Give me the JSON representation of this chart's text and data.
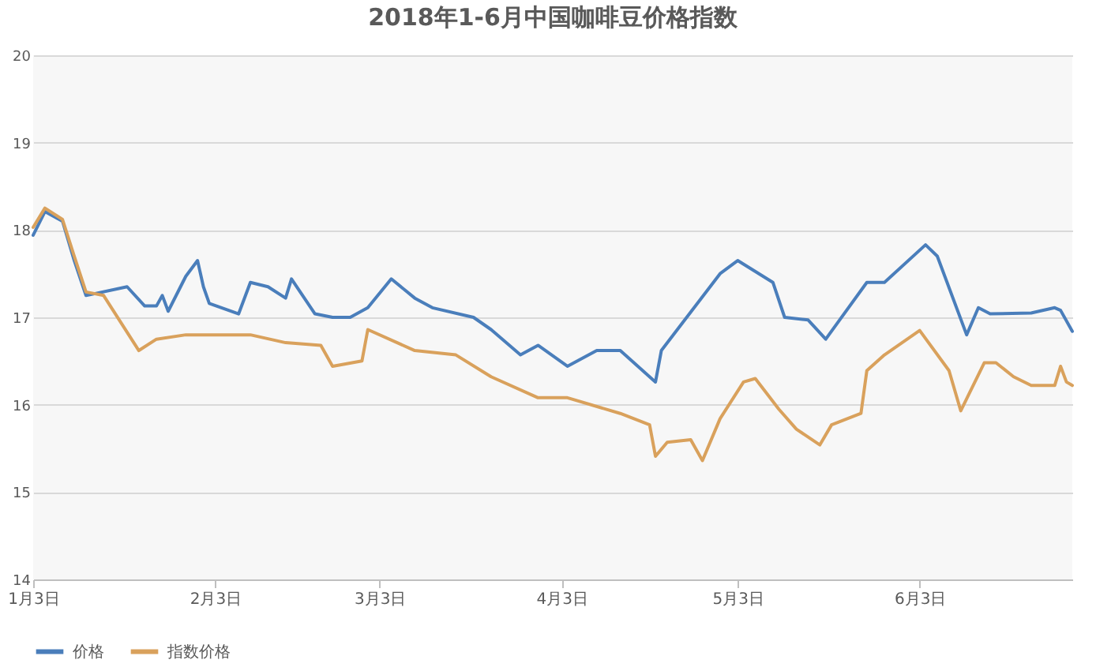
{
  "chart_data": {
    "type": "line",
    "title": "2018年1-6月中国咖啡豆价格指数",
    "x": [
      "--01-03",
      "--01-05",
      "--01-08",
      "--01-10",
      "--01-12",
      "--01-19",
      "--01-22",
      "--01-24",
      "--01-25",
      "--01-26",
      "--01-29",
      "--01-31",
      "--02-01",
      "--02-02",
      "--02-07",
      "--02-09",
      "--02-12",
      "--02-15",
      "--02-16",
      "--02-20",
      "--02-23",
      "--02-26",
      "--03-01",
      "--03-05",
      "--03-09",
      "--03-12",
      "--03-19",
      "--03-22",
      "--03-27",
      "--03-30",
      "--04-04",
      "--04-09",
      "--04-13",
      "--04-19",
      "--04-20",
      "--04-30",
      "--05-03",
      "--05-09",
      "--05-11",
      "--05-15",
      "--05-18",
      "--05-25",
      "--05-28",
      "--06-04",
      "--06-06",
      "--06-11",
      "--06-13",
      "--06-15",
      "--06-22",
      "--06-26",
      "--06-27",
      "--06-29"
    ],
    "series": [
      {
        "name": "价格",
        "color": "#4a7ebb",
        "values": [
          17.94,
          18.21,
          18.1,
          17.65,
          17.25,
          17.35,
          17.13,
          17.13,
          17.25,
          17.07,
          17.47,
          17.65,
          17.35,
          17.16,
          17.04,
          17.4,
          17.35,
          17.22,
          17.44,
          17.04,
          17.0,
          17.0,
          17.11,
          17.44,
          17.22,
          17.11,
          17.0,
          16.86,
          16.57,
          16.68,
          16.44,
          16.62,
          16.62,
          16.26,
          16.62,
          17.5,
          17.65,
          17.4,
          17.0,
          16.97,
          16.75,
          17.4,
          17.4,
          17.83,
          17.7,
          16.8,
          17.11,
          17.04,
          17.05,
          17.11,
          17.08,
          16.84
        ]
      },
      {
        "name": "指数价格",
        "color": "#d9a15c",
        "x": [
          "--01-03",
          "--01-05",
          "--01-08",
          "--01-10",
          "--01-12",
          "--01-15",
          "--01-21",
          "--01-24",
          "--01-29",
          "--02-05",
          "--02-09",
          "--02-15",
          "--02-21",
          "--02-23",
          "--02-28",
          "--03-01",
          "--03-09",
          "--03-16",
          "--03-22",
          "--03-30",
          "--04-04",
          "--04-13",
          "--04-18",
          "--04-19",
          "--04-21",
          "--04-25",
          "--04-27",
          "--04-30",
          "--05-04",
          "--05-06",
          "--05-10",
          "--05-13",
          "--05-17",
          "--05-19",
          "--05-24",
          "--05-25",
          "--05-28",
          "--06-03",
          "--06-08",
          "--06-10",
          "--06-14",
          "--06-16",
          "--06-19",
          "--06-22",
          "--06-26",
          "--06-27",
          "--06-28",
          "--06-29"
        ],
        "values": [
          18.03,
          18.25,
          18.12,
          17.7,
          17.29,
          17.25,
          16.62,
          16.75,
          16.8,
          16.8,
          16.8,
          16.71,
          16.68,
          16.44,
          16.5,
          16.86,
          16.62,
          16.57,
          16.32,
          16.08,
          16.08,
          15.9,
          15.77,
          15.41,
          15.57,
          15.6,
          15.36,
          15.84,
          16.26,
          16.3,
          15.95,
          15.72,
          15.54,
          15.77,
          15.9,
          16.39,
          16.57,
          16.85,
          16.39,
          15.93,
          16.48,
          16.48,
          16.32,
          16.22,
          16.22,
          16.44,
          16.26,
          16.22
        ]
      }
    ],
    "xlim": [
      "--01-03",
      "--06-29"
    ],
    "xticks": [
      {
        "value": "--01-03",
        "label": "1月3日"
      },
      {
        "value": "--02-03",
        "label": "2月3日"
      },
      {
        "value": "--03-03",
        "label": "3月3日"
      },
      {
        "value": "--04-03",
        "label": "4月3日"
      },
      {
        "value": "--05-03",
        "label": "5月3日"
      },
      {
        "value": "--06-03",
        "label": "6月3日"
      }
    ],
    "ylim": [
      14,
      20
    ],
    "yticks": [
      14,
      15,
      16,
      17,
      18,
      19,
      20
    ],
    "grid": "y",
    "legend": "bottom",
    "marker": "none",
    "line_style": "solid"
  }
}
